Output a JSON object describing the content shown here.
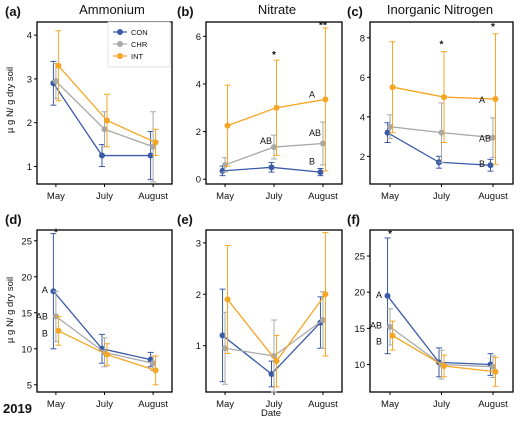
{
  "figure": {
    "ylabel_top": "µ g N/ g dry soil",
    "ylabel_bottom": "µ g N/ g dry soil",
    "xlabel": "Date",
    "year_label": "2019"
  },
  "legend": [
    {
      "name": "CON",
      "color": "#3a5ba8"
    },
    {
      "name": "CHR",
      "color": "#a8a8a8"
    },
    {
      "name": "INT",
      "color": "#f5a623"
    }
  ],
  "chart_data": [
    {
      "type": "line",
      "panel": "(a)",
      "title": "Ammonium",
      "categories": [
        "May",
        "July",
        "August"
      ],
      "ylim": [
        0.6,
        4.3
      ],
      "yticks": [
        1,
        2,
        3,
        4
      ],
      "series": [
        {
          "name": "CON",
          "color": "#3a5ba8",
          "values": [
            2.9,
            1.25,
            1.25
          ],
          "err": [
            0.5,
            0.25,
            0.55
          ]
        },
        {
          "name": "CHR",
          "color": "#a8a8a8",
          "values": [
            2.95,
            1.85,
            1.45
          ],
          "err": [
            0.4,
            0.4,
            0.8
          ]
        },
        {
          "name": "INT",
          "color": "#f5a623",
          "values": [
            3.3,
            2.05,
            1.55
          ],
          "err": [
            0.8,
            0.6,
            0.3
          ]
        }
      ],
      "annotations": []
    },
    {
      "type": "line",
      "panel": "(b)",
      "title": "Nitrate",
      "categories": [
        "May",
        "July",
        "August"
      ],
      "ylim": [
        -0.2,
        6.6
      ],
      "yticks": [
        0,
        2,
        4,
        6
      ],
      "series": [
        {
          "name": "CON",
          "color": "#3a5ba8",
          "values": [
            0.35,
            0.5,
            0.3
          ],
          "err": [
            0.2,
            0.2,
            0.15
          ]
        },
        {
          "name": "CHR",
          "color": "#a8a8a8",
          "values": [
            0.6,
            1.35,
            1.5
          ],
          "err": [
            0.3,
            0.5,
            0.9
          ]
        },
        {
          "name": "INT",
          "color": "#f5a623",
          "values": [
            2.25,
            3.0,
            3.35
          ],
          "err": [
            1.7,
            2.0,
            3.0
          ]
        }
      ],
      "annotations": [
        {
          "text": "*",
          "x": 1,
          "y": 5.25,
          "kind": "sig"
        },
        {
          "text": "**",
          "x": 2,
          "y": 6.5,
          "kind": "sig"
        },
        {
          "text": "A",
          "x": 2,
          "y": 3.55,
          "kind": "ann"
        },
        {
          "text": "AB",
          "x": 1,
          "y": 1.6,
          "kind": "ann"
        },
        {
          "text": "AB",
          "x": 2,
          "y": 1.95,
          "kind": "ann"
        },
        {
          "text": "B",
          "x": 2,
          "y": 0.75,
          "kind": "ann"
        }
      ]
    },
    {
      "type": "line",
      "panel": "(c)",
      "title": "Inorganic Nitrogen",
      "categories": [
        "May",
        "July",
        "August"
      ],
      "ylim": [
        0.6,
        8.8
      ],
      "yticks": [
        2,
        4,
        6,
        8
      ],
      "series": [
        {
          "name": "CON",
          "color": "#3a5ba8",
          "values": [
            3.2,
            1.7,
            1.55
          ],
          "err": [
            0.5,
            0.3,
            0.3
          ]
        },
        {
          "name": "CHR",
          "color": "#a8a8a8",
          "values": [
            3.5,
            3.2,
            2.95
          ],
          "err": [
            0.6,
            1.5,
            1.0
          ]
        },
        {
          "name": "INT",
          "color": "#f5a623",
          "values": [
            5.5,
            5.0,
            4.9
          ],
          "err": [
            2.3,
            2.3,
            3.3
          ]
        }
      ],
      "annotations": [
        {
          "text": "*",
          "x": 1,
          "y": 7.7,
          "kind": "sig"
        },
        {
          "text": "*",
          "x": 2,
          "y": 8.6,
          "kind": "sig"
        },
        {
          "text": "A",
          "x": 2,
          "y": 4.85,
          "kind": "ann"
        },
        {
          "text": "AB",
          "x": 2,
          "y": 2.9,
          "kind": "ann"
        },
        {
          "text": "B",
          "x": 2,
          "y": 1.6,
          "kind": "ann"
        }
      ]
    },
    {
      "type": "line",
      "panel": "(d)",
      "title": "",
      "categories": [
        "May",
        "July",
        "August"
      ],
      "ylim": [
        4,
        26.5
      ],
      "yticks": [
        5,
        10,
        15,
        20,
        25
      ],
      "series": [
        {
          "name": "CON",
          "color": "#3a5ba8",
          "values": [
            18,
            10,
            8.5
          ],
          "err": [
            8,
            2,
            1
          ]
        },
        {
          "name": "CHR",
          "color": "#a8a8a8",
          "values": [
            14.5,
            9.5,
            8
          ],
          "err": [
            3.5,
            2,
            1
          ]
        },
        {
          "name": "INT",
          "color": "#f5a623",
          "values": [
            12.5,
            9.2,
            7
          ],
          "err": [
            2,
            1.5,
            2
          ]
        }
      ],
      "annotations": [
        {
          "text": "*",
          "x": 0,
          "y": 26.3,
          "kind": "sig"
        },
        {
          "text": "A",
          "x": 0,
          "y": 18.2,
          "kind": "annleft"
        },
        {
          "text": "AB",
          "x": 0,
          "y": 14.5,
          "kind": "annleft"
        },
        {
          "text": "B",
          "x": 0,
          "y": 12.1,
          "kind": "annleft"
        }
      ]
    },
    {
      "type": "line",
      "panel": "(e)",
      "title": "",
      "categories": [
        "May",
        "July",
        "August"
      ],
      "ylim": [
        0.1,
        3.25
      ],
      "yticks": [
        1,
        2,
        3
      ],
      "series": [
        {
          "name": "CON",
          "color": "#3a5ba8",
          "values": [
            1.2,
            0.45,
            1.45
          ],
          "err": [
            0.9,
            0.25,
            0.5
          ]
        },
        {
          "name": "CHR",
          "color": "#a8a8a8",
          "values": [
            0.95,
            0.8,
            1.5
          ],
          "err": [
            0.7,
            0.7,
            0.55
          ]
        },
        {
          "name": "INT",
          "color": "#f5a623",
          "values": [
            1.9,
            0.7,
            2.0
          ],
          "err": [
            1.05,
            0.5,
            1.2
          ]
        }
      ],
      "annotations": []
    },
    {
      "type": "line",
      "panel": "(f)",
      "title": "",
      "categories": [
        "May",
        "July",
        "August"
      ],
      "ylim": [
        6.2,
        28.6
      ],
      "yticks": [
        10,
        15,
        20,
        25
      ],
      "series": [
        {
          "name": "CON",
          "color": "#3a5ba8",
          "values": [
            19.5,
            10.3,
            10
          ],
          "err": [
            8,
            2,
            1.5
          ]
        },
        {
          "name": "CHR",
          "color": "#a8a8a8",
          "values": [
            15.2,
            10,
            9.7
          ],
          "err": [
            2.5,
            2,
            1.5
          ]
        },
        {
          "name": "INT",
          "color": "#f5a623",
          "values": [
            14,
            9.8,
            9
          ],
          "err": [
            2,
            1.5,
            2
          ]
        }
      ],
      "annotations": [
        {
          "text": "*",
          "x": 0,
          "y": 28.2,
          "kind": "sig"
        },
        {
          "text": "A",
          "x": 0,
          "y": 19.6,
          "kind": "annleft"
        },
        {
          "text": "AB",
          "x": 0,
          "y": 15.4,
          "kind": "annleft"
        },
        {
          "text": "B",
          "x": 0,
          "y": 13.2,
          "kind": "annleft"
        }
      ]
    }
  ]
}
